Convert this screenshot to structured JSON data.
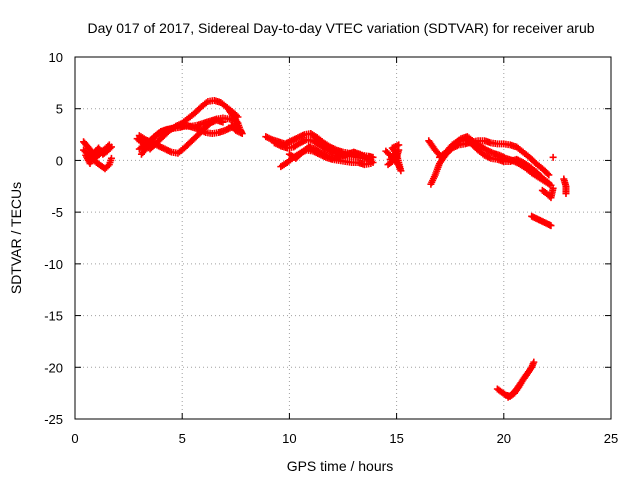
{
  "chart_data": {
    "type": "scatter",
    "title": "Day 017 of 2017, Sidereal Day-to-day VTEC variation (SDTVAR) for receiver arub",
    "xlabel": "GPS time / hours",
    "ylabel": "SDTVAR / TECUs",
    "xlim": [
      0,
      25
    ],
    "ylim": [
      -25,
      10
    ],
    "xticks": [
      0,
      5,
      10,
      15,
      20,
      25
    ],
    "yticks": [
      10,
      5,
      0,
      -5,
      -10,
      -15,
      -20,
      -25
    ],
    "grid": true,
    "marker": "+",
    "series": [
      {
        "name": "SDTVAR",
        "color": "#ff0000",
        "segments": [
          [
            [
              0.4,
              1.8
            ],
            [
              0.6,
              1.3
            ],
            [
              0.8,
              0.8
            ],
            [
              1.0,
              0.3
            ],
            [
              1.2,
              0.8
            ],
            [
              1.4,
              1.1
            ],
            [
              1.6,
              1.5
            ]
          ],
          [
            [
              0.4,
              1.0
            ],
            [
              0.6,
              0.6
            ],
            [
              0.8,
              0.2
            ],
            [
              1.0,
              -0.2
            ],
            [
              1.2,
              -0.5
            ],
            [
              1.4,
              -0.8
            ],
            [
              1.6,
              -0.4
            ],
            [
              1.7,
              0.2
            ]
          ],
          [
            [
              0.5,
              0.5
            ],
            [
              0.7,
              -0.3
            ],
            [
              0.9,
              0.7
            ],
            [
              1.1,
              1.2
            ],
            [
              1.3,
              0.6
            ],
            [
              1.5,
              0.9
            ],
            [
              1.7,
              1.3
            ]
          ],
          [
            [
              2.9,
              2.1
            ],
            [
              3.2,
              1.6
            ],
            [
              3.5,
              1.1
            ],
            [
              3.8,
              1.7
            ],
            [
              4.1,
              2.3
            ],
            [
              4.4,
              2.9
            ],
            [
              4.7,
              3.3
            ],
            [
              5.0,
              3.6
            ],
            [
              5.3,
              4.1
            ],
            [
              5.6,
              4.6
            ],
            [
              5.9,
              5.2
            ],
            [
              6.2,
              5.7
            ],
            [
              6.5,
              5.8
            ],
            [
              6.8,
              5.6
            ],
            [
              7.1,
              5.1
            ],
            [
              7.4,
              4.6
            ],
            [
              7.6,
              4.2
            ]
          ],
          [
            [
              3.0,
              1.1
            ],
            [
              3.3,
              1.6
            ],
            [
              3.6,
              2.1
            ],
            [
              3.9,
              2.6
            ],
            [
              4.2,
              2.9
            ],
            [
              4.5,
              3.1
            ],
            [
              4.8,
              3.2
            ],
            [
              5.1,
              3.3
            ],
            [
              5.4,
              3.3
            ],
            [
              5.7,
              3.4
            ],
            [
              6.0,
              3.6
            ],
            [
              6.3,
              3.8
            ],
            [
              6.6,
              4.0
            ],
            [
              6.9,
              4.1
            ],
            [
              7.2,
              4.0
            ],
            [
              7.5,
              3.8
            ]
          ],
          [
            [
              3.1,
              0.6
            ],
            [
              3.4,
              1.4
            ],
            [
              3.7,
              2.3
            ],
            [
              4.0,
              2.8
            ],
            [
              4.3,
              3.0
            ],
            [
              4.6,
              3.1
            ],
            [
              4.9,
              3.2
            ],
            [
              5.2,
              3.4
            ],
            [
              5.5,
              3.2
            ],
            [
              5.8,
              3.0
            ],
            [
              6.1,
              2.7
            ],
            [
              6.4,
              2.6
            ],
            [
              6.7,
              2.7
            ],
            [
              7.0,
              2.9
            ],
            [
              7.3,
              3.2
            ],
            [
              7.6,
              3.4
            ]
          ],
          [
            [
              3.0,
              2.4
            ],
            [
              3.3,
              2.0
            ],
            [
              3.6,
              1.7
            ],
            [
              3.9,
              1.4
            ],
            [
              4.2,
              1.1
            ],
            [
              4.5,
              0.8
            ],
            [
              4.8,
              0.7
            ],
            [
              5.1,
              1.2
            ],
            [
              5.4,
              1.8
            ],
            [
              5.7,
              2.4
            ],
            [
              6.0,
              3.0
            ],
            [
              6.3,
              3.6
            ],
            [
              6.6,
              3.9
            ],
            [
              6.9,
              3.7
            ]
          ],
          [
            [
              7.2,
              4.8
            ],
            [
              7.4,
              4.2
            ],
            [
              7.6,
              3.6
            ],
            [
              7.7,
              3.0
            ],
            [
              7.8,
              2.6
            ],
            [
              7.5,
              2.9
            ],
            [
              7.3,
              3.4
            ]
          ],
          [
            [
              8.9,
              2.3
            ],
            [
              9.2,
              2.0
            ],
            [
              9.5,
              1.8
            ],
            [
              9.8,
              1.6
            ],
            [
              10.1,
              1.9
            ],
            [
              10.4,
              2.2
            ],
            [
              10.7,
              2.5
            ],
            [
              11.0,
              2.6
            ],
            [
              11.3,
              2.2
            ],
            [
              11.6,
              1.7
            ],
            [
              11.9,
              1.3
            ],
            [
              12.2,
              1.0
            ],
            [
              12.5,
              0.8
            ],
            [
              12.8,
              0.7
            ],
            [
              13.1,
              0.6
            ],
            [
              13.4,
              0.5
            ],
            [
              13.7,
              0.4
            ],
            [
              13.9,
              0.3
            ]
          ],
          [
            [
              9.3,
              1.7
            ],
            [
              9.6,
              1.4
            ],
            [
              9.9,
              1.2
            ],
            [
              10.2,
              1.3
            ],
            [
              10.5,
              1.7
            ],
            [
              10.8,
              2.0
            ],
            [
              11.1,
              1.9
            ],
            [
              11.4,
              1.5
            ],
            [
              11.7,
              1.1
            ],
            [
              12.0,
              0.8
            ],
            [
              12.3,
              0.6
            ],
            [
              12.6,
              0.5
            ],
            [
              12.9,
              0.4
            ],
            [
              13.2,
              0.3
            ],
            [
              13.5,
              0.2
            ],
            [
              13.8,
              0.1
            ]
          ],
          [
            [
              9.6,
              -0.6
            ],
            [
              9.9,
              -0.2
            ],
            [
              10.2,
              0.3
            ],
            [
              10.5,
              0.7
            ],
            [
              10.8,
              1.0
            ],
            [
              11.1,
              0.9
            ],
            [
              11.4,
              0.6
            ],
            [
              11.7,
              0.3
            ],
            [
              12.0,
              0.1
            ],
            [
              12.3,
              0.0
            ],
            [
              12.6,
              -0.1
            ],
            [
              12.9,
              -0.2
            ],
            [
              13.2,
              -0.2
            ],
            [
              13.5,
              -0.4
            ],
            [
              13.8,
              -0.3
            ]
          ],
          [
            [
              10.0,
              0.6
            ],
            [
              10.3,
              0.2
            ],
            [
              10.6,
              0.8
            ],
            [
              10.9,
              1.3
            ],
            [
              11.2,
              1.1
            ],
            [
              11.5,
              0.7
            ],
            [
              11.8,
              0.4
            ],
            [
              12.1,
              0.2
            ],
            [
              12.4,
              0.4
            ],
            [
              12.7,
              0.6
            ],
            [
              13.0,
              0.8
            ],
            [
              13.3,
              0.6
            ],
            [
              13.6,
              0.2
            ],
            [
              13.9,
              -0.2
            ]
          ],
          [
            [
              14.5,
              0.9
            ],
            [
              14.7,
              0.5
            ],
            [
              14.9,
              0.1
            ],
            [
              15.1,
              -0.5
            ],
            [
              15.2,
              -1.0
            ],
            [
              15.0,
              0.6
            ],
            [
              14.8,
              1.2
            ],
            [
              15.1,
              1.5
            ]
          ],
          [
            [
              14.6,
              -0.4
            ],
            [
              14.8,
              -0.1
            ],
            [
              15.0,
              0.3
            ],
            [
              15.1,
              1.0
            ],
            [
              14.7,
              0.1
            ]
          ],
          [
            [
              16.5,
              1.9
            ],
            [
              16.8,
              1.0
            ],
            [
              17.1,
              0.3
            ],
            [
              17.4,
              0.9
            ],
            [
              17.7,
              1.6
            ],
            [
              18.0,
              2.1
            ],
            [
              18.3,
              2.3
            ],
            [
              18.6,
              1.8
            ],
            [
              18.9,
              1.4
            ],
            [
              19.2,
              1.0
            ],
            [
              19.5,
              0.7
            ],
            [
              19.8,
              0.5
            ],
            [
              20.1,
              0.2
            ],
            [
              20.4,
              0.0
            ],
            [
              20.7,
              -0.3
            ],
            [
              21.0,
              -0.7
            ],
            [
              21.3,
              -1.2
            ],
            [
              21.6,
              -1.6
            ],
            [
              21.9,
              -2.0
            ],
            [
              22.2,
              -2.4
            ]
          ],
          [
            [
              16.6,
              -2.3
            ],
            [
              16.8,
              -1.4
            ],
            [
              17.0,
              -0.3
            ],
            [
              17.3,
              0.6
            ],
            [
              17.6,
              1.2
            ],
            [
              17.9,
              1.5
            ],
            [
              18.2,
              1.6
            ],
            [
              18.5,
              1.8
            ],
            [
              18.8,
              1.9
            ],
            [
              19.1,
              1.9
            ],
            [
              19.4,
              1.7
            ],
            [
              19.7,
              1.6
            ],
            [
              20.0,
              1.6
            ],
            [
              20.3,
              1.5
            ],
            [
              20.6,
              1.3
            ],
            [
              20.9,
              0.8
            ],
            [
              21.2,
              0.3
            ],
            [
              21.5,
              -0.3
            ],
            [
              21.8,
              -0.8
            ],
            [
              22.1,
              -1.4
            ]
          ],
          [
            [
              17.0,
              0.3
            ],
            [
              17.3,
              0.8
            ],
            [
              17.6,
              1.5
            ],
            [
              17.9,
              1.9
            ],
            [
              18.2,
              2.0
            ],
            [
              18.5,
              1.6
            ],
            [
              18.8,
              1.0
            ],
            [
              19.1,
              0.5
            ],
            [
              19.4,
              0.2
            ],
            [
              19.7,
              0.1
            ],
            [
              20.0,
              -0.1
            ],
            [
              20.3,
              -0.1
            ],
            [
              20.6,
              0.1
            ],
            [
              20.9,
              -0.2
            ],
            [
              21.2,
              -0.6
            ],
            [
              21.5,
              -1.1
            ],
            [
              21.8,
              -1.7
            ],
            [
              22.1,
              -2.2
            ]
          ],
          [
            [
              21.8,
              -2.9
            ],
            [
              22.0,
              -3.2
            ],
            [
              22.2,
              -3.6
            ],
            [
              22.3,
              -2.7
            ]
          ],
          [
            [
              21.3,
              -5.4
            ],
            [
              21.5,
              -5.6
            ],
            [
              21.7,
              -5.8
            ],
            [
              21.9,
              -6.0
            ],
            [
              22.1,
              -6.2
            ],
            [
              22.2,
              -6.3
            ]
          ],
          [
            [
              22.3,
              0.3
            ]
          ],
          [
            [
              22.8,
              -1.8
            ],
            [
              22.9,
              -2.5
            ],
            [
              22.9,
              -3.2
            ]
          ],
          [
            [
              19.7,
              -22.1
            ],
            [
              19.9,
              -22.4
            ],
            [
              20.1,
              -22.7
            ],
            [
              20.3,
              -22.8
            ],
            [
              20.5,
              -22.5
            ],
            [
              20.7,
              -21.9
            ],
            [
              20.9,
              -21.2
            ],
            [
              21.1,
              -20.6
            ],
            [
              21.3,
              -20.0
            ],
            [
              21.4,
              -19.5
            ]
          ],
          [
            [
              20.2,
              -22.9
            ],
            [
              20.4,
              -22.6
            ],
            [
              20.6,
              -22.1
            ],
            [
              20.8,
              -21.5
            ],
            [
              21.0,
              -20.9
            ],
            [
              21.2,
              -20.3
            ]
          ]
        ]
      }
    ]
  }
}
